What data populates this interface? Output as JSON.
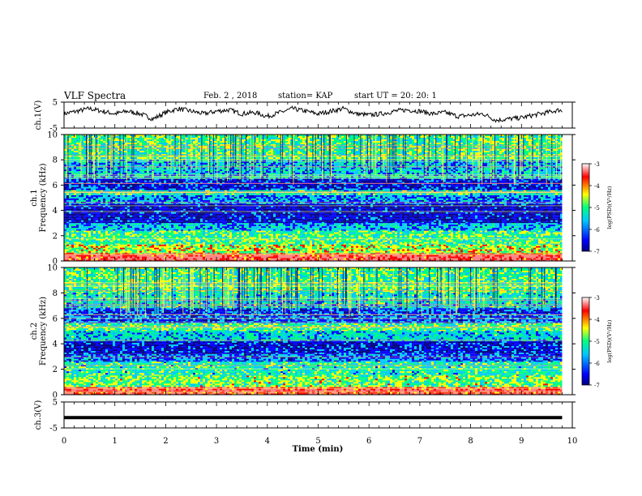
{
  "header": {
    "title": "VLF Spectra",
    "date": "Feb. 2 , 2018",
    "station": "station= KAP",
    "start": "start  UT =   20: 20: 1"
  },
  "chart_data": [
    {
      "type": "line",
      "ylabel": "ch.1(V)",
      "ylim": [
        -5,
        5
      ],
      "yticks": [
        "5",
        "-5"
      ],
      "xlim": [
        0,
        10
      ],
      "series": [
        {
          "x": [
            0,
            0.25,
            0.5,
            0.75,
            1,
            1.25,
            1.5,
            1.75,
            2,
            2.25,
            2.5,
            2.75,
            3,
            3.25,
            3.5,
            3.75,
            4,
            4.25,
            4.5,
            4.75,
            5,
            5.25,
            5.5,
            5.75,
            6,
            6.25,
            6.5,
            6.75,
            7,
            7.25,
            7.5,
            7.75,
            8,
            8.25,
            8.5,
            8.75,
            9,
            9.25,
            9.5,
            9.75,
            9.8
          ],
          "values": [
            0.5,
            1.5,
            2.5,
            1.5,
            0.5,
            1.5,
            0.5,
            -1.5,
            1.0,
            2.5,
            1.5,
            0.5,
            1.5,
            2.0,
            0.5,
            1.0,
            -0.5,
            1.0,
            2.5,
            1.5,
            0.5,
            1.5,
            2.5,
            0.5,
            0.0,
            0.5,
            1.5,
            2.0,
            1.5,
            0.5,
            1.0,
            -0.5,
            0.0,
            0.5,
            -2.0,
            -1.5,
            -1.0,
            0.0,
            1.0,
            2.0,
            1.5
          ]
        }
      ]
    },
    {
      "type": "heatmap",
      "ylabel": "ch.1\nFrequency (kHz)",
      "ylim": [
        0,
        10
      ],
      "yticks": [
        "0",
        "2",
        "4",
        "6",
        "8",
        "10"
      ],
      "xlim": [
        0,
        10
      ],
      "colorbar": {
        "label": "log(PSD)(V²/Hz)",
        "range": [
          -7,
          -3
        ],
        "ticks": [
          "-3",
          "-4",
          "-5",
          "-6",
          "-7"
        ]
      },
      "bands": [
        {
          "from": 0,
          "to": 0.6,
          "level": -3.5
        },
        {
          "from": 0.6,
          "to": 1.3,
          "level": -4.6
        },
        {
          "from": 1.3,
          "to": 2.4,
          "level": -5.0
        },
        {
          "from": 2.4,
          "to": 3.0,
          "level": -5.6
        },
        {
          "from": 3.0,
          "to": 4.5,
          "level": -6.4
        },
        {
          "from": 4.5,
          "to": 5.2,
          "level": -5.8
        },
        {
          "from": 5.2,
          "to": 5.6,
          "level": -5.2
        },
        {
          "from": 5.6,
          "to": 6.5,
          "level": -6.2
        },
        {
          "from": 6.5,
          "to": 8.0,
          "level": -5.5
        },
        {
          "from": 8.0,
          "to": 10,
          "level": -5.0
        }
      ]
    },
    {
      "type": "heatmap",
      "ylabel": "ch.2\nFrequency (kHz)",
      "ylim": [
        0,
        10
      ],
      "yticks": [
        "0",
        "2",
        "4",
        "6",
        "8",
        "10"
      ],
      "xlim": [
        0,
        10
      ],
      "colorbar": {
        "label": "log(PSD)(V²/Hz)",
        "range": [
          -7,
          -3
        ],
        "ticks": [
          "-3",
          "-4",
          "-5",
          "-6",
          "-7"
        ]
      },
      "bands": [
        {
          "from": 0,
          "to": 0.6,
          "level": -3.6
        },
        {
          "from": 0.6,
          "to": 1.5,
          "level": -4.8
        },
        {
          "from": 1.5,
          "to": 2.6,
          "level": -5.2
        },
        {
          "from": 2.6,
          "to": 3.2,
          "level": -5.9
        },
        {
          "from": 3.2,
          "to": 4.2,
          "level": -6.3
        },
        {
          "from": 4.2,
          "to": 5.0,
          "level": -5.4
        },
        {
          "from": 5.0,
          "to": 5.6,
          "level": -5.0
        },
        {
          "from": 5.6,
          "to": 6.8,
          "level": -6.0
        },
        {
          "from": 6.8,
          "to": 8.0,
          "level": -5.3
        },
        {
          "from": 8.0,
          "to": 10,
          "level": -5.0
        }
      ]
    },
    {
      "type": "line",
      "ylabel": "ch.3(V)",
      "ylim": [
        -5,
        5
      ],
      "yticks": [
        "5",
        "-5"
      ],
      "xlim": [
        0,
        10
      ],
      "series": [
        {
          "x": [
            0,
            9.8
          ],
          "values": [
            -1,
            -1
          ]
        }
      ]
    }
  ],
  "xaxis": {
    "label": "Time  (min)",
    "ticks": [
      "0",
      "1",
      "2",
      "3",
      "4",
      "5",
      "6",
      "7",
      "8",
      "9",
      "10"
    ]
  },
  "colors": {
    "colormap": [
      "#000080",
      "#0000ff",
      "#00c8ff",
      "#00ff80",
      "#ffff00",
      "#ff0000",
      "#ff8080",
      "#ffffff"
    ]
  }
}
